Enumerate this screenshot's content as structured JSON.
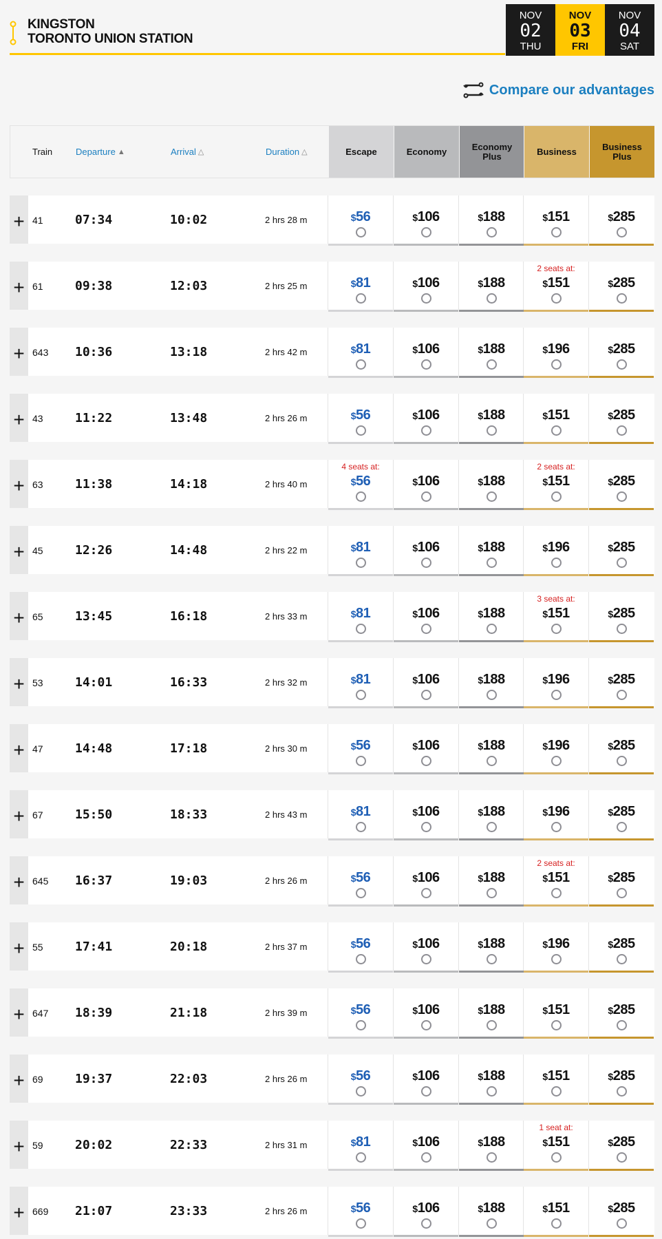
{
  "route": {
    "origin": "KINGSTON",
    "destination": "TORONTO UNION STATION",
    "icon": "route-icon"
  },
  "dates": [
    {
      "month": "NOV",
      "day": "02",
      "weekday": "THU",
      "selected": false
    },
    {
      "month": "NOV",
      "day": "03",
      "weekday": "FRI",
      "selected": true
    },
    {
      "month": "NOV",
      "day": "04",
      "weekday": "SAT",
      "selected": false
    }
  ],
  "compare": {
    "label": "Compare our advantages",
    "icon": "compare-arrows-icon"
  },
  "header": {
    "train": "Train",
    "departure": "Departure",
    "arrival": "Arrival",
    "duration": "Duration"
  },
  "fare_classes": [
    {
      "name": "Escape",
      "color": "#d4d4d6",
      "bar": "#d4d4d6"
    },
    {
      "name": "Economy",
      "color": "#b9babc",
      "bar": "#b9babc"
    },
    {
      "name": "Economy Plus",
      "color": "#939497",
      "bar": "#939497"
    },
    {
      "name": "Business",
      "color": "#d9b56a",
      "bar": "#d9b56a"
    },
    {
      "name": "Business Plus",
      "color": "#c6962e",
      "bar": "#c6962e"
    }
  ],
  "colors": {
    "accent": "#ffc600",
    "link": "#1b7fc0",
    "escape_price": "#1f5fb5",
    "seats_warning": "#d62020"
  },
  "currency": "$",
  "trains": [
    {
      "train": "41",
      "dep": "07:34",
      "arr": "10:02",
      "dur": "2 hrs 28 m",
      "prices": [
        "56",
        "106",
        "188",
        "151",
        "285"
      ],
      "seats": [
        "",
        "",
        "",
        "",
        ""
      ]
    },
    {
      "train": "61",
      "dep": "09:38",
      "arr": "12:03",
      "dur": "2 hrs 25 m",
      "prices": [
        "81",
        "106",
        "188",
        "151",
        "285"
      ],
      "seats": [
        "",
        "",
        "",
        "2 seats at:",
        ""
      ]
    },
    {
      "train": "643",
      "dep": "10:36",
      "arr": "13:18",
      "dur": "2 hrs 42 m",
      "prices": [
        "81",
        "106",
        "188",
        "196",
        "285"
      ],
      "seats": [
        "",
        "",
        "",
        "",
        ""
      ]
    },
    {
      "train": "43",
      "dep": "11:22",
      "arr": "13:48",
      "dur": "2 hrs 26 m",
      "prices": [
        "56",
        "106",
        "188",
        "151",
        "285"
      ],
      "seats": [
        "",
        "",
        "",
        "",
        ""
      ]
    },
    {
      "train": "63",
      "dep": "11:38",
      "arr": "14:18",
      "dur": "2 hrs 40 m",
      "prices": [
        "56",
        "106",
        "188",
        "151",
        "285"
      ],
      "seats": [
        "4 seats at:",
        "",
        "",
        "2 seats at:",
        ""
      ]
    },
    {
      "train": "45",
      "dep": "12:26",
      "arr": "14:48",
      "dur": "2 hrs 22 m",
      "prices": [
        "81",
        "106",
        "188",
        "196",
        "285"
      ],
      "seats": [
        "",
        "",
        "",
        "",
        ""
      ]
    },
    {
      "train": "65",
      "dep": "13:45",
      "arr": "16:18",
      "dur": "2 hrs 33 m",
      "prices": [
        "81",
        "106",
        "188",
        "151",
        "285"
      ],
      "seats": [
        "",
        "",
        "",
        "3 seats at:",
        ""
      ]
    },
    {
      "train": "53",
      "dep": "14:01",
      "arr": "16:33",
      "dur": "2 hrs 32 m",
      "prices": [
        "81",
        "106",
        "188",
        "196",
        "285"
      ],
      "seats": [
        "",
        "",
        "",
        "",
        ""
      ]
    },
    {
      "train": "47",
      "dep": "14:48",
      "arr": "17:18",
      "dur": "2 hrs 30 m",
      "prices": [
        "56",
        "106",
        "188",
        "196",
        "285"
      ],
      "seats": [
        "",
        "",
        "",
        "",
        ""
      ]
    },
    {
      "train": "67",
      "dep": "15:50",
      "arr": "18:33",
      "dur": "2 hrs 43 m",
      "prices": [
        "81",
        "106",
        "188",
        "196",
        "285"
      ],
      "seats": [
        "",
        "",
        "",
        "",
        ""
      ]
    },
    {
      "train": "645",
      "dep": "16:37",
      "arr": "19:03",
      "dur": "2 hrs 26 m",
      "prices": [
        "56",
        "106",
        "188",
        "151",
        "285"
      ],
      "seats": [
        "",
        "",
        "",
        "2 seats at:",
        ""
      ]
    },
    {
      "train": "55",
      "dep": "17:41",
      "arr": "20:18",
      "dur": "2 hrs 37 m",
      "prices": [
        "56",
        "106",
        "188",
        "196",
        "285"
      ],
      "seats": [
        "",
        "",
        "",
        "",
        ""
      ]
    },
    {
      "train": "647",
      "dep": "18:39",
      "arr": "21:18",
      "dur": "2 hrs 39 m",
      "prices": [
        "56",
        "106",
        "188",
        "151",
        "285"
      ],
      "seats": [
        "",
        "",
        "",
        "",
        ""
      ]
    },
    {
      "train": "69",
      "dep": "19:37",
      "arr": "22:03",
      "dur": "2 hrs 26 m",
      "prices": [
        "56",
        "106",
        "188",
        "151",
        "285"
      ],
      "seats": [
        "",
        "",
        "",
        "",
        ""
      ]
    },
    {
      "train": "59",
      "dep": "20:02",
      "arr": "22:33",
      "dur": "2 hrs 31 m",
      "prices": [
        "81",
        "106",
        "188",
        "151",
        "285"
      ],
      "seats": [
        "",
        "",
        "",
        "1 seat at:",
        ""
      ]
    },
    {
      "train": "669",
      "dep": "21:07",
      "arr": "23:33",
      "dur": "2 hrs 26 m",
      "prices": [
        "56",
        "106",
        "188",
        "151",
        "285"
      ],
      "seats": [
        "",
        "",
        "",
        "",
        ""
      ]
    }
  ]
}
